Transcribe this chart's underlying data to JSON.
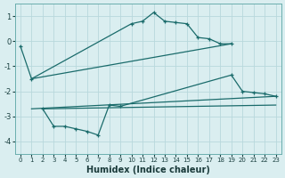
{
  "xlabel": "Humidex (Indice chaleur)",
  "bg_color": "#daeef0",
  "grid_color": "#b8d8dc",
  "line_color": "#1a6b6b",
  "ylim": [
    -4.5,
    1.5
  ],
  "xlim": [
    -0.5,
    23.5
  ],
  "yticks": [
    -4,
    -3,
    -2,
    -1,
    0,
    1
  ],
  "xticks": [
    0,
    1,
    2,
    3,
    4,
    5,
    6,
    7,
    8,
    9,
    10,
    11,
    12,
    13,
    14,
    15,
    16,
    17,
    18,
    19,
    20,
    21,
    22,
    23
  ],
  "series": [
    {
      "x": [
        0,
        1,
        10,
        11,
        12,
        13,
        14,
        15,
        16,
        17,
        18,
        19
      ],
      "y": [
        -0.2,
        -1.5,
        0.7,
        0.8,
        1.15,
        0.8,
        0.75,
        0.7,
        0.15,
        0.1,
        -0.1,
        -0.1
      ],
      "markers": true
    },
    {
      "x": [
        1,
        19
      ],
      "y": [
        -1.5,
        -0.1
      ],
      "markers": false
    },
    {
      "x": [
        1,
        23
      ],
      "y": [
        -2.7,
        -2.2
      ],
      "markers": false
    },
    {
      "x": [
        2,
        3,
        4,
        5,
        6,
        7,
        8,
        9,
        19,
        20,
        21,
        22,
        23
      ],
      "y": [
        -2.7,
        -3.4,
        -3.4,
        -3.5,
        -3.6,
        -3.75,
        -2.55,
        -2.6,
        -1.35,
        -2.0,
        -2.05,
        -2.1,
        -2.2
      ],
      "markers": true
    },
    {
      "x": [
        2,
        23
      ],
      "y": [
        -2.7,
        -2.55
      ],
      "markers": false
    }
  ]
}
